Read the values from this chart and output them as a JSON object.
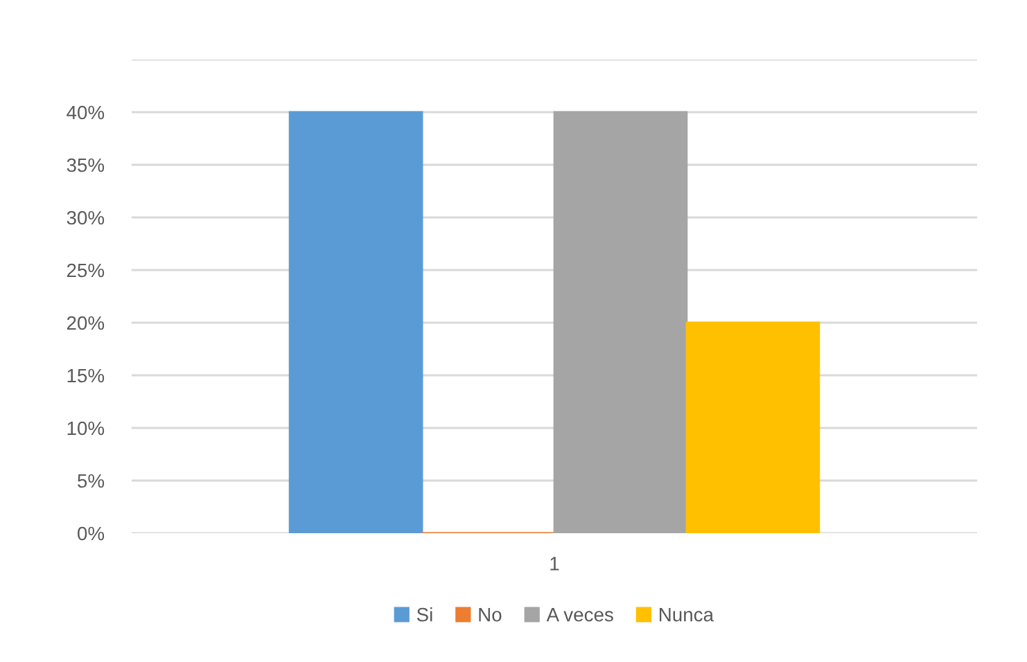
{
  "chart_data": {
    "type": "bar",
    "categories": [
      "1"
    ],
    "series": [
      {
        "name": "Si",
        "color": "#5b9bd5",
        "values": [
          40
        ]
      },
      {
        "name": "No",
        "color": "#ed7d31",
        "values": [
          0
        ]
      },
      {
        "name": "A veces",
        "color": "#a5a5a5",
        "values": [
          40
        ]
      },
      {
        "name": "Nunca",
        "color": "#ffc000",
        "values": [
          20
        ]
      }
    ],
    "ylim": [
      0,
      45
    ],
    "yticks": [
      {
        "value": 0,
        "label": "0%"
      },
      {
        "value": 5,
        "label": "5%"
      },
      {
        "value": 10,
        "label": "10%"
      },
      {
        "value": 15,
        "label": "15%"
      },
      {
        "value": 20,
        "label": "20%"
      },
      {
        "value": 25,
        "label": "25%"
      },
      {
        "value": 30,
        "label": "30%"
      },
      {
        "value": 35,
        "label": "35%"
      },
      {
        "value": 40,
        "label": "40%"
      },
      {
        "value": 45,
        "label": null
      }
    ],
    "grid": "y",
    "legend": "bottom"
  }
}
